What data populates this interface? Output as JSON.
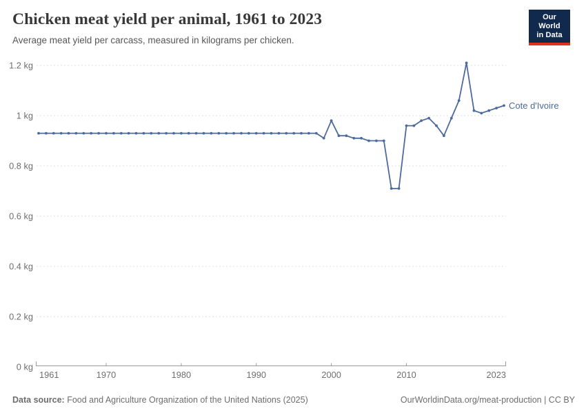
{
  "header": {
    "title": "Chicken meat yield per animal, 1961 to 2023",
    "subtitle": "Average meat yield per carcass, measured in kilograms per chicken."
  },
  "logo": {
    "line1": "Our World",
    "line2": "in Data",
    "bg_color": "#12294e",
    "accent_color": "#e0311b"
  },
  "chart_data": {
    "type": "line",
    "title": "Chicken meat yield per animal, 1961 to 2023",
    "subtitle": "Average meat yield per carcass, measured in kilograms per chicken.",
    "xlabel": "",
    "ylabel": "kg",
    "xlim": [
      1961,
      2023
    ],
    "ylim": [
      0,
      1.2
    ],
    "grid": "horizontal-dashed",
    "legend_position": "end-of-line-label",
    "x_ticks": [
      1961,
      1970,
      1980,
      1990,
      2000,
      2010,
      2023
    ],
    "y_ticks": [
      {
        "value": 0,
        "label": "0 kg"
      },
      {
        "value": 0.2,
        "label": "0.2 kg"
      },
      {
        "value": 0.4,
        "label": "0.4 kg"
      },
      {
        "value": 0.6,
        "label": "0.6 kg"
      },
      {
        "value": 0.8,
        "label": "0.8 kg"
      },
      {
        "value": 1,
        "label": "1 kg"
      },
      {
        "value": 1.2,
        "label": "1.2 kg"
      }
    ],
    "series": [
      {
        "name": "Cote d'Ivoire",
        "color": "#4C6A9C",
        "x": [
          1961,
          1962,
          1963,
          1964,
          1965,
          1966,
          1967,
          1968,
          1969,
          1970,
          1971,
          1972,
          1973,
          1974,
          1975,
          1976,
          1977,
          1978,
          1979,
          1980,
          1981,
          1982,
          1983,
          1984,
          1985,
          1986,
          1987,
          1988,
          1989,
          1990,
          1991,
          1992,
          1993,
          1994,
          1995,
          1996,
          1997,
          1998,
          1999,
          2000,
          2001,
          2002,
          2003,
          2004,
          2005,
          2006,
          2007,
          2008,
          2009,
          2010,
          2011,
          2012,
          2013,
          2014,
          2015,
          2016,
          2017,
          2018,
          2019,
          2020,
          2021,
          2022,
          2023
        ],
        "values": [
          0.93,
          0.93,
          0.93,
          0.93,
          0.93,
          0.93,
          0.93,
          0.93,
          0.93,
          0.93,
          0.93,
          0.93,
          0.93,
          0.93,
          0.93,
          0.93,
          0.93,
          0.93,
          0.93,
          0.93,
          0.93,
          0.93,
          0.93,
          0.93,
          0.93,
          0.93,
          0.93,
          0.93,
          0.93,
          0.93,
          0.93,
          0.93,
          0.93,
          0.93,
          0.93,
          0.93,
          0.93,
          0.93,
          0.91,
          0.98,
          0.92,
          0.92,
          0.91,
          0.91,
          0.9,
          0.9,
          0.9,
          0.71,
          0.71,
          0.96,
          0.96,
          0.98,
          0.99,
          0.96,
          0.92,
          0.99,
          1.06,
          1.21,
          1.02,
          1.01,
          1.02,
          1.03,
          1.04
        ]
      }
    ]
  },
  "footer": {
    "source_label": "Data source:",
    "source_text": "Food and Agriculture Organization of the United Nations (2025)",
    "credit": "OurWorldinData.org/meat-production | CC BY"
  },
  "colors": {
    "line": "#4C6A9C",
    "grid": "#dcdcdc",
    "axis": "#9a9a9a",
    "tick_text": "#6e6e6e",
    "title_text": "#383838",
    "subtitle_text": "#575757",
    "footer_text": "#6d6d6d",
    "background": "#ffffff"
  }
}
